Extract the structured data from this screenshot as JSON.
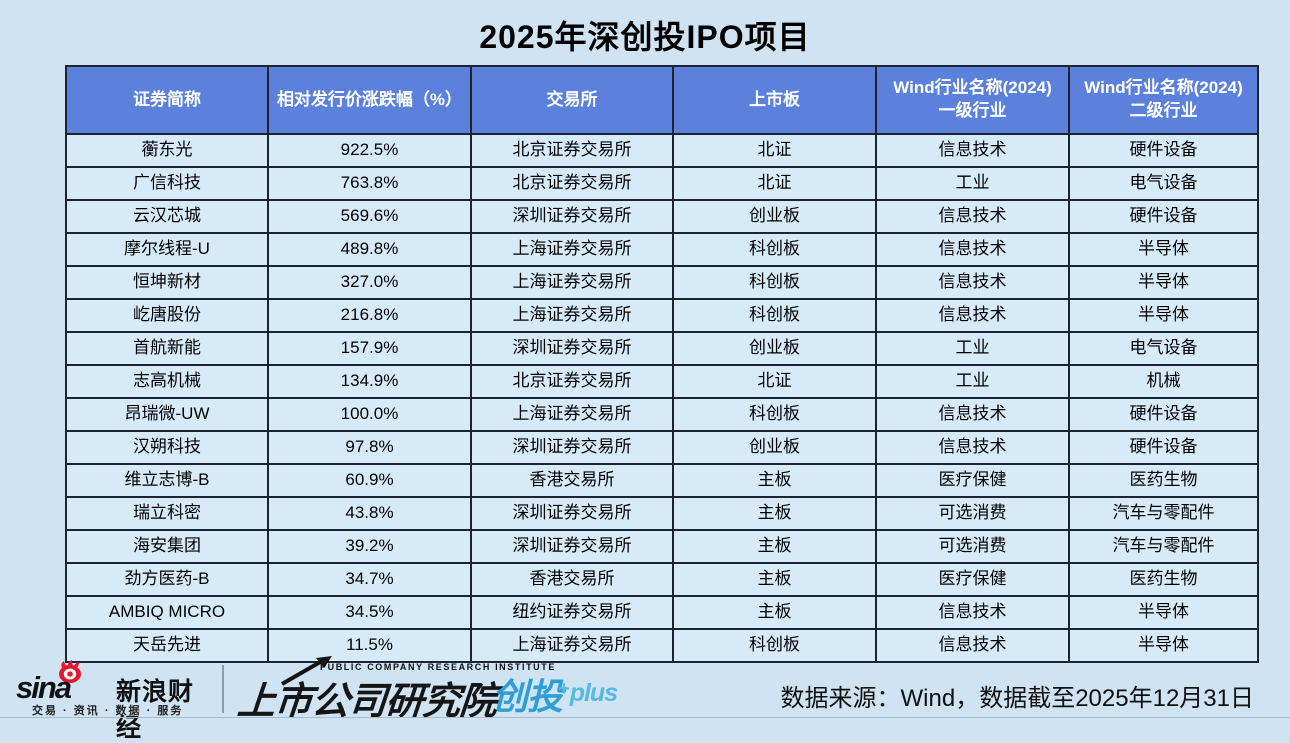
{
  "chart_data": {
    "type": "table",
    "title": "2025年深创投IPO项目",
    "columns": [
      "证券简称",
      "相对发行价涨跌幅（%）",
      "交易所",
      "上市板",
      "Wind行业名称(2024)\n一级行业",
      "Wind行业名称(2024)\n二级行业"
    ],
    "rows": [
      [
        "蘅东光",
        "922.5%",
        "北京证券交易所",
        "北证",
        "信息技术",
        "硬件设备"
      ],
      [
        "广信科技",
        "763.8%",
        "北京证券交易所",
        "北证",
        "工业",
        "电气设备"
      ],
      [
        "云汉芯城",
        "569.6%",
        "深圳证券交易所",
        "创业板",
        "信息技术",
        "硬件设备"
      ],
      [
        "摩尔线程-U",
        "489.8%",
        "上海证券交易所",
        "科创板",
        "信息技术",
        "半导体"
      ],
      [
        "恒坤新材",
        "327.0%",
        "上海证券交易所",
        "科创板",
        "信息技术",
        "半导体"
      ],
      [
        "屹唐股份",
        "216.8%",
        "上海证券交易所",
        "科创板",
        "信息技术",
        "半导体"
      ],
      [
        "首航新能",
        "157.9%",
        "深圳证券交易所",
        "创业板",
        "工业",
        "电气设备"
      ],
      [
        "志高机械",
        "134.9%",
        "北京证券交易所",
        "北证",
        "工业",
        "机械"
      ],
      [
        "昂瑞微-UW",
        "100.0%",
        "上海证券交易所",
        "科创板",
        "信息技术",
        "硬件设备"
      ],
      [
        "汉朔科技",
        "97.8%",
        "深圳证券交易所",
        "创业板",
        "信息技术",
        "硬件设备"
      ],
      [
        "维立志博-B",
        "60.9%",
        "香港交易所",
        "主板",
        "医疗保健",
        "医药生物"
      ],
      [
        "瑞立科密",
        "43.8%",
        "深圳证券交易所",
        "主板",
        "可选消费",
        "汽车与零配件"
      ],
      [
        "海安集团",
        "39.2%",
        "深圳证券交易所",
        "主板",
        "可选消费",
        "汽车与零配件"
      ],
      [
        "劲方医药-B",
        "34.7%",
        "香港交易所",
        "主板",
        "医疗保健",
        "医药生物"
      ],
      [
        "AMBIQ MICRO",
        "34.5%",
        "纽约证券交易所",
        "主板",
        "信息技术",
        "半导体"
      ],
      [
        "天岳先进",
        "11.5%",
        "上海证券交易所",
        "科创板",
        "信息技术",
        "半导体"
      ]
    ]
  },
  "footer": {
    "sina_wordmark": "sina",
    "sina_brand": "新浪财经",
    "sina_tagline": "交易 · 资讯 · 数据 · 服务",
    "institute_en": "PUBLIC COMPANY RESEARCH INSTITUTE",
    "institute_cn": "上市公司研究院",
    "plus_cn": "创投",
    "plus_sign": "+",
    "plus_suffix": "plus",
    "datasource": "数据来源：Wind，数据截至2025年12月31日"
  },
  "colors": {
    "page_bg": "#cfe3f2",
    "cell_bg": "#d7eaf8",
    "header_bg": "#5b81dc",
    "header_text": "#ffffff",
    "border": "#1c2430",
    "title_color": "#000000",
    "sina_red": "#e6162d",
    "brand_blue": "#2f9fd3",
    "brand_blue_light": "#55b9e5",
    "footer_line": "#a8bccb"
  }
}
